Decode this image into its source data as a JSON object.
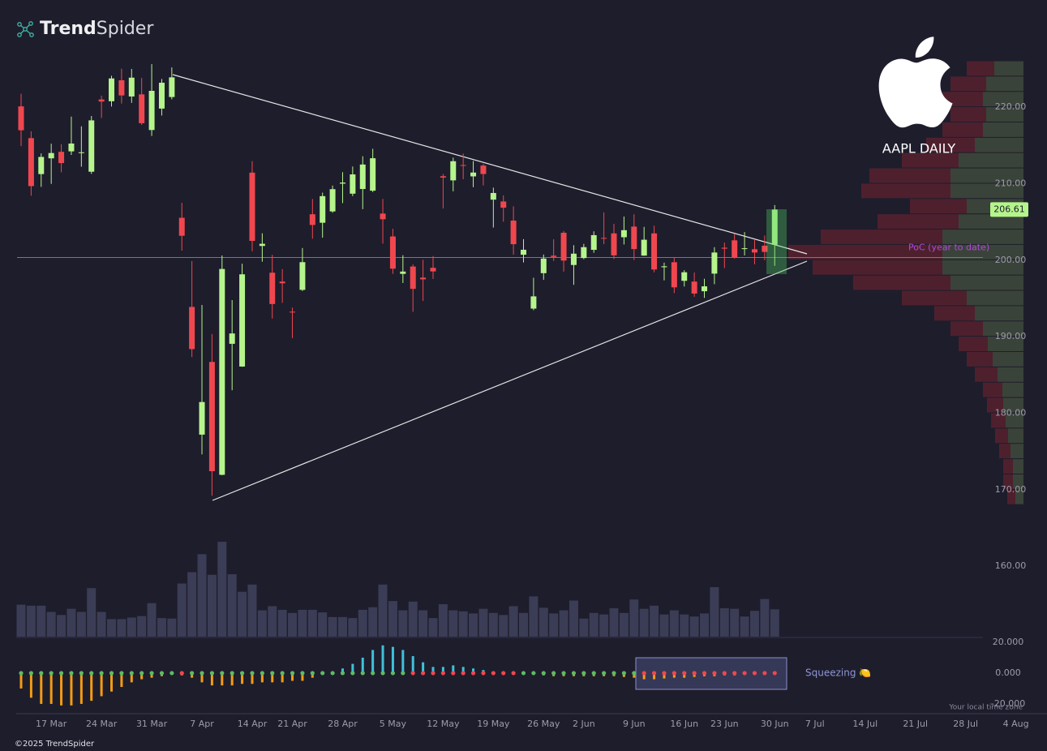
{
  "chart_data": {
    "type": "candlestick",
    "title": "AAPL DAILY",
    "brand": {
      "bold": "Trend",
      "light": "Spider"
    },
    "copyright": "©2025 TrendSpider",
    "timezone_note": "Your local time zone",
    "squeeze_label": "Squeezing 🍋",
    "poc": {
      "label": "PoC (year to date)",
      "value": 200.35
    },
    "colors": {
      "up": "#b5f58c",
      "down": "#f0474f",
      "volume": "#3b3d56",
      "momentum_up": "#3fc1d9",
      "momentum_down": "#f39c12",
      "squeeze_on": "#f0474f",
      "squeeze_off": "#5dbb63",
      "profile_buy": "#3f4a3c",
      "profile_sell": "#57212f",
      "poc": "#b04ad6"
    },
    "categories": [
      null,
      null,
      null,
      "17 Mar",
      null,
      null,
      null,
      null,
      "24 Mar",
      null,
      null,
      null,
      null,
      "31 Mar",
      null,
      null,
      null,
      null,
      "7 Apr",
      null,
      null,
      null,
      null,
      "14 Apr",
      null,
      null,
      null,
      "21 Apr",
      null,
      null,
      null,
      null,
      "28 Apr",
      null,
      null,
      null,
      null,
      "5 May",
      null,
      null,
      null,
      null,
      "12 May",
      null,
      null,
      null,
      null,
      "19 May",
      null,
      null,
      null,
      null,
      "26 May",
      null,
      null,
      null,
      "2 Jun",
      null,
      null,
      null,
      null,
      "9 Jun",
      null,
      null,
      null,
      null,
      "16 Jun",
      null,
      null,
      null,
      "23 Jun",
      null,
      null,
      null,
      null,
      "30 Jun",
      null,
      null,
      null,
      "7 Jul",
      null,
      null,
      null,
      null,
      "14 Jul",
      null,
      null,
      null,
      null,
      "21 Jul",
      null,
      null,
      null,
      null,
      "28 Jul",
      null,
      null,
      null,
      null,
      "4 Aug"
    ],
    "open": [
      220.1,
      215.95,
      211.25,
      213.31,
      214.16,
      214.22,
      213.99,
      211.56,
      221.0,
      220.77,
      223.51,
      221.39,
      221.67,
      217.01,
      219.81,
      221.32,
      205.54,
      193.89,
      177.2,
      186.7,
      171.95,
      189.07,
      186.1,
      211.44,
      201.86,
      198.36,
      197.2,
      193.27,
      196.12,
      206.0,
      204.89,
      206.37,
      210.0,
      208.69,
      209.3,
      209.08,
      206.09,
      203.1,
      198.21,
      199.17,
      197.72,
      199.0,
      210.97,
      210.43,
      212.43,
      210.95,
      212.36,
      207.91,
      207.67,
      205.17,
      200.71,
      193.67,
      198.3,
      200.59,
      203.58,
      199.37,
      200.28,
      201.35,
      202.91,
      203.5,
      203.0,
      204.39,
      200.6,
      203.5,
      199.08,
      199.73,
      197.3,
      197.2,
      195.94,
      198.24,
      201.63,
      202.59,
      201.45,
      201.43,
      201.89,
      202.01,
      null,
      null,
      null,
      null,
      null,
      null,
      null,
      null,
      null,
      null,
      null,
      null,
      null,
      null,
      null,
      null,
      null,
      null,
      null,
      null,
      null,
      null,
      null,
      null
    ],
    "high": [
      221.75,
      216.84,
      213.95,
      215.22,
      215.15,
      218.76,
      217.49,
      218.84,
      221.48,
      224.1,
      225.02,
      224.99,
      223.81,
      225.62,
      223.68,
      225.19,
      207.49,
      199.88,
      194.15,
      190.34,
      200.61,
      194.78,
      199.54,
      212.94,
      203.51,
      200.7,
      198.83,
      193.8,
      201.59,
      208.0,
      208.83,
      209.75,
      211.5,
      212.24,
      213.58,
      214.56,
      208.0,
      204.1,
      200.65,
      199.44,
      200.05,
      200.54,
      211.27,
      213.4,
      213.94,
      212.96,
      212.57,
      209.48,
      208.47,
      207.04,
      202.75,
      197.7,
      200.74,
      202.73,
      203.81,
      201.96,
      202.13,
      203.77,
      206.24,
      204.75,
      205.7,
      206.0,
      204.35,
      204.5,
      199.68,
      200.37,
      198.69,
      198.39,
      197.57,
      201.7,
      202.3,
      203.44,
      203.67,
      202.64,
      203.22,
      207.2,
      null,
      null,
      null,
      null,
      null,
      null,
      null,
      null,
      null,
      null,
      null,
      null,
      null,
      null,
      null,
      null,
      null,
      null,
      null,
      null,
      null,
      null,
      null,
      null
    ],
    "low": [
      214.91,
      208.42,
      209.58,
      209.97,
      211.49,
      213.75,
      212.22,
      211.28,
      218.58,
      220.08,
      220.47,
      220.56,
      217.68,
      216.23,
      218.9,
      221.02,
      201.25,
      187.34,
      174.62,
      169.21,
      171.89,
      183.0,
      186.06,
      201.16,
      199.8,
      192.37,
      194.42,
      189.81,
      195.97,
      202.8,
      202.94,
      206.2,
      207.46,
      208.37,
      206.67,
      208.9,
      202.16,
      198.21,
      197.02,
      193.25,
      194.68,
      197.54,
      206.75,
      209.0,
      210.58,
      209.54,
      209.77,
      204.26,
      205.03,
      200.71,
      199.7,
      193.46,
      197.43,
      199.9,
      198.51,
      196.78,
      200.12,
      200.96,
      202.1,
      200.15,
      202.05,
      200.02,
      200.57,
      198.41,
      197.36,
      195.7,
      196.56,
      195.21,
      195.07,
      196.86,
      198.96,
      200.2,
      200.62,
      199.46,
      200.0,
      199.26,
      null,
      null,
      null,
      null,
      null,
      null,
      null,
      null,
      null,
      null,
      null,
      null,
      null,
      null,
      null,
      null,
      null,
      null,
      null,
      null,
      null,
      null,
      null,
      null
    ],
    "close": [
      216.98,
      209.68,
      213.49,
      214.0,
      212.69,
      215.24,
      214.1,
      218.27,
      220.73,
      223.75,
      221.53,
      223.85,
      217.9,
      222.13,
      223.19,
      223.89,
      203.19,
      188.38,
      181.46,
      172.42,
      198.85,
      190.42,
      198.15,
      202.52,
      202.14,
      194.27,
      196.98,
      193.16,
      199.74,
      204.6,
      208.37,
      209.28,
      210.14,
      211.21,
      212.5,
      213.32,
      205.35,
      198.89,
      198.51,
      196.25,
      197.49,
      198.53,
      210.79,
      212.93,
      212.33,
      211.45,
      211.26,
      208.78,
      206.86,
      202.09,
      201.36,
      195.27,
      200.21,
      200.42,
      199.95,
      200.85,
      201.7,
      203.27,
      202.82,
      200.63,
      203.92,
      201.45,
      202.67,
      198.78,
      199.2,
      196.45,
      198.42,
      195.64,
      196.58,
      201.0,
      201.5,
      200.3,
      201.56,
      201.0,
      201.08,
      206.61,
      null,
      null,
      null,
      null,
      null,
      null,
      null,
      null,
      null,
      null,
      null,
      null,
      null,
      null,
      null,
      null,
      null,
      null,
      null,
      null,
      null,
      null,
      null,
      null
    ],
    "volume": [
      62,
      60,
      60,
      48,
      42,
      54,
      48,
      94,
      48,
      34,
      34,
      37,
      40,
      65,
      36,
      35,
      103,
      125,
      160,
      120,
      184,
      121,
      87,
      101,
      51,
      59,
      52,
      46,
      52,
      52,
      47,
      38,
      38,
      36,
      52,
      57,
      101,
      69,
      51,
      68,
      51,
      36,
      63,
      51,
      49,
      45,
      54,
      46,
      42,
      59,
      46,
      78,
      56,
      45,
      51,
      70,
      35,
      46,
      43,
      55,
      46,
      72,
      54,
      60,
      43,
      51,
      43,
      39,
      45,
      96,
      55,
      54,
      39,
      50,
      73,
      53,
      null,
      null,
      null,
      null,
      null,
      null,
      null,
      null,
      null,
      null,
      null,
      null,
      null,
      null,
      null,
      null,
      null,
      null,
      null,
      null,
      null,
      null,
      null,
      null
    ],
    "momentum": [
      -10,
      -16,
      -20,
      -20,
      -21,
      -21,
      -20,
      -18,
      -15,
      -12,
      -9,
      -6,
      -4,
      -3,
      -2,
      -1,
      -1.5,
      -3,
      -6,
      -8,
      -8,
      -8,
      -7,
      -7,
      -6,
      -6,
      -6,
      -5,
      -5,
      -3,
      -1,
      1,
      3,
      6,
      10,
      15,
      18,
      17,
      15,
      11,
      7,
      4,
      4,
      5,
      4,
      3,
      2,
      1,
      0.5,
      0.3,
      -0.5,
      -1,
      -1.5,
      -2,
      -2,
      -2,
      -2,
      -2,
      -2,
      -2,
      -2.5,
      -3,
      -4,
      -4,
      -3.5,
      -3,
      -3,
      -2.5,
      -2,
      -2,
      -1.5,
      -1.5,
      -1,
      -1,
      -0.5,
      -0.3,
      null,
      null,
      null,
      null,
      null,
      null,
      null,
      null,
      null,
      null,
      null,
      null,
      null,
      null,
      null,
      null,
      null,
      null,
      null,
      null,
      null,
      null,
      null,
      null
    ],
    "squeeze": [
      false,
      false,
      false,
      false,
      false,
      false,
      false,
      false,
      false,
      false,
      false,
      false,
      false,
      false,
      false,
      false,
      true,
      false,
      false,
      false,
      false,
      false,
      false,
      false,
      false,
      false,
      false,
      false,
      false,
      false,
      false,
      false,
      false,
      false,
      false,
      false,
      false,
      false,
      false,
      true,
      true,
      true,
      true,
      true,
      true,
      true,
      true,
      true,
      true,
      true,
      false,
      false,
      false,
      false,
      false,
      false,
      false,
      false,
      false,
      false,
      false,
      false,
      true,
      true,
      true,
      true,
      true,
      true,
      true,
      true,
      true,
      true,
      true,
      true,
      true,
      true,
      null,
      null,
      null,
      null,
      null,
      null,
      null,
      null,
      null,
      null,
      null,
      null,
      null,
      null,
      null,
      null,
      null,
      null,
      null,
      null,
      null,
      null,
      null,
      null
    ],
    "ylim": [
      150.8,
      234.0
    ],
    "yticks": [
      {
        "value": 160,
        "label": "160.00"
      },
      {
        "value": 170,
        "label": "170.00"
      },
      {
        "value": 180,
        "label": "180.00"
      },
      {
        "value": 190,
        "label": "190.00"
      },
      {
        "value": 200,
        "label": "200.00"
      },
      {
        "value": 210,
        "label": "210.00"
      },
      {
        "value": 220,
        "label": "220.00"
      }
    ],
    "y2lim": [
      -25.3,
      22.6
    ],
    "y2ticks": [
      {
        "value": 20,
        "label": "20.000"
      },
      {
        "value": 0,
        "label": "0.000"
      },
      {
        "value": -20,
        "label": "-20.000"
      }
    ],
    "profile": {
      "bins": [
        168,
        170,
        172,
        174,
        176,
        178,
        180,
        182,
        184,
        186,
        188,
        190,
        192,
        194,
        196,
        198,
        200,
        202,
        204,
        206,
        208,
        210,
        212,
        214,
        216,
        218,
        220,
        222,
        224,
        226
      ],
      "buy": [
        10,
        13,
        13,
        16,
        19,
        22,
        25,
        26,
        32,
        38,
        44,
        50,
        60,
        70,
        90,
        100,
        100,
        100,
        80,
        70,
        90,
        90,
        80,
        60,
        50,
        46,
        50,
        46,
        36
      ],
      "sell": [
        10,
        12,
        12,
        14,
        16,
        18,
        20,
        24,
        28,
        32,
        36,
        40,
        50,
        80,
        120,
        160,
        190,
        150,
        100,
        70,
        110,
        100,
        70,
        60,
        50,
        44,
        50,
        44,
        34
      ]
    }
  }
}
